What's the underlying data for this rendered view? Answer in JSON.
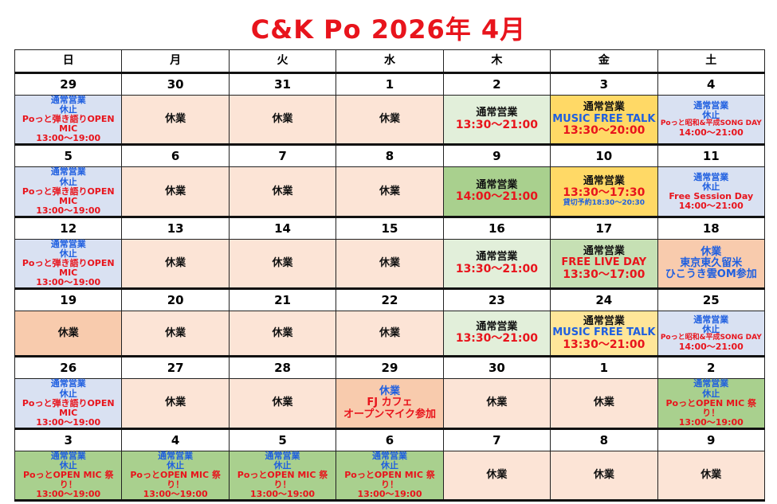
{
  "title": "C&K Po 2026年  4月",
  "colors": {
    "blue": "#d9e1f2",
    "peach": "#fce4d6",
    "ltgreen": "#e2efda",
    "green": "#a9d08e",
    "midgreen": "#c6e0b4",
    "yellow": "#ffd966",
    "ltyellow": "#ffe699",
    "orange": "#f8cbad",
    "textBlue": "#1f5fe0",
    "textRed": "#e8141c",
    "textBlack": "#111111"
  },
  "weekdays": [
    "日",
    "月",
    "火",
    "水",
    "木",
    "金",
    "土"
  ],
  "weeks": [
    {
      "cells": [
        {
          "date": "29",
          "bg": "blue",
          "lines": [
            {
              "t": "通常営業",
              "c": "textBlue",
              "s": "m"
            },
            {
              "t": "休止",
              "c": "textBlue",
              "s": "m"
            },
            {
              "t": "Poっと弾き語りOPEN MIC",
              "c": "textRed",
              "s": "m"
            },
            {
              "t": "13:00～19:00",
              "c": "textRed",
              "s": "m"
            }
          ]
        },
        {
          "date": "30",
          "bg": "peach",
          "lines": [
            {
              "t": "休業",
              "c": "textBlack",
              "s": "l"
            }
          ]
        },
        {
          "date": "31",
          "bg": "peach",
          "lines": [
            {
              "t": "休業",
              "c": "textBlack",
              "s": "l"
            }
          ]
        },
        {
          "date": "1",
          "bg": "peach",
          "lines": [
            {
              "t": "休業",
              "c": "textBlack",
              "s": "l"
            }
          ]
        },
        {
          "date": "2",
          "bg": "ltgreen",
          "lines": [
            {
              "t": "通常営業",
              "c": "textBlack",
              "s": "l"
            },
            {
              "t": "13:30～21:00",
              "c": "textRed",
              "s": "xl"
            }
          ]
        },
        {
          "date": "3",
          "bg": "yellow",
          "lines": [
            {
              "t": "通常営業",
              "c": "textBlack",
              "s": "l"
            },
            {
              "t": "MUSIC FREE TALK",
              "c": "textBlue",
              "s": "l"
            },
            {
              "t": "13:30～20:00",
              "c": "textRed",
              "s": "xl"
            }
          ]
        },
        {
          "date": "4",
          "bg": "blue",
          "lines": [
            {
              "t": "通常営業",
              "c": "textBlue",
              "s": "m"
            },
            {
              "t": "休止",
              "c": "textBlue",
              "s": "m"
            },
            {
              "t": "Poっと昭和&平成SONG DAY",
              "c": "textRed",
              "s": "s"
            },
            {
              "t": "14:00～21:00",
              "c": "textRed",
              "s": "m"
            }
          ]
        }
      ]
    },
    {
      "cells": [
        {
          "date": "5",
          "bg": "blue",
          "lines": [
            {
              "t": "通常営業",
              "c": "textBlue",
              "s": "m"
            },
            {
              "t": "休止",
              "c": "textBlue",
              "s": "m"
            },
            {
              "t": "Poっと弾き語りOPEN MIC",
              "c": "textRed",
              "s": "m"
            },
            {
              "t": "13:00～19:00",
              "c": "textRed",
              "s": "m"
            }
          ]
        },
        {
          "date": "6",
          "bg": "peach",
          "lines": [
            {
              "t": "休業",
              "c": "textBlack",
              "s": "l"
            }
          ]
        },
        {
          "date": "7",
          "bg": "peach",
          "lines": [
            {
              "t": "休業",
              "c": "textBlack",
              "s": "l"
            }
          ]
        },
        {
          "date": "8",
          "bg": "peach",
          "lines": [
            {
              "t": "休業",
              "c": "textBlack",
              "s": "l"
            }
          ]
        },
        {
          "date": "9",
          "bg": "green",
          "lines": [
            {
              "t": "通常営業",
              "c": "textBlack",
              "s": "l"
            },
            {
              "t": "14:00～21:00",
              "c": "textRed",
              "s": "xl"
            }
          ]
        },
        {
          "date": "10",
          "bg": "yellow",
          "lines": [
            {
              "t": "通常営業",
              "c": "textBlack",
              "s": "l"
            },
            {
              "t": "13:30～17:30",
              "c": "textRed",
              "s": "xl"
            },
            {
              "t": "貸切予約18:30～20:30",
              "c": "textBlue",
              "s": "s"
            }
          ]
        },
        {
          "date": "11",
          "bg": "blue",
          "lines": [
            {
              "t": "通常営業",
              "c": "textBlue",
              "s": "m"
            },
            {
              "t": "休止",
              "c": "textBlue",
              "s": "m"
            },
            {
              "t": "Free Session Day",
              "c": "textRed",
              "s": "m"
            },
            {
              "t": "14:00～21:00",
              "c": "textRed",
              "s": "m"
            }
          ]
        }
      ]
    },
    {
      "cells": [
        {
          "date": "12",
          "bg": "blue",
          "lines": [
            {
              "t": "通常営業",
              "c": "textBlue",
              "s": "m"
            },
            {
              "t": "休止",
              "c": "textBlue",
              "s": "m"
            },
            {
              "t": "Poっと弾き語りOPEN MIC",
              "c": "textRed",
              "s": "m"
            },
            {
              "t": "13:00～19:00",
              "c": "textRed",
              "s": "m"
            }
          ]
        },
        {
          "date": "13",
          "bg": "peach",
          "lines": [
            {
              "t": "休業",
              "c": "textBlack",
              "s": "l"
            }
          ]
        },
        {
          "date": "14",
          "bg": "peach",
          "lines": [
            {
              "t": "休業",
              "c": "textBlack",
              "s": "l"
            }
          ]
        },
        {
          "date": "15",
          "bg": "peach",
          "lines": [
            {
              "t": "休業",
              "c": "textBlack",
              "s": "l"
            }
          ]
        },
        {
          "date": "16",
          "bg": "ltgreen",
          "lines": [
            {
              "t": "通常営業",
              "c": "textBlack",
              "s": "l"
            },
            {
              "t": "13:30～21:00",
              "c": "textRed",
              "s": "xl"
            }
          ]
        },
        {
          "date": "17",
          "bg": "midgreen",
          "lines": [
            {
              "t": "通常営業",
              "c": "textBlack",
              "s": "l"
            },
            {
              "t": "FREE LIVE DAY",
              "c": "textRed",
              "s": "l"
            },
            {
              "t": "13:30～17:00",
              "c": "textRed",
              "s": "xl"
            }
          ]
        },
        {
          "date": "18",
          "bg": "orange",
          "lines": [
            {
              "t": "休業",
              "c": "textBlue",
              "s": "l"
            },
            {
              "t": "東京東久留米",
              "c": "textBlue",
              "s": "l"
            },
            {
              "t": "ひこうき雲OM参加",
              "c": "textBlue",
              "s": "l"
            }
          ]
        }
      ]
    },
    {
      "cells": [
        {
          "date": "19",
          "bg": "orange",
          "lines": [
            {
              "t": "休業",
              "c": "textBlack",
              "s": "l"
            }
          ]
        },
        {
          "date": "20",
          "bg": "peach",
          "lines": [
            {
              "t": "休業",
              "c": "textBlack",
              "s": "l"
            }
          ]
        },
        {
          "date": "21",
          "bg": "peach",
          "lines": [
            {
              "t": "休業",
              "c": "textBlack",
              "s": "l"
            }
          ]
        },
        {
          "date": "22",
          "bg": "peach",
          "lines": [
            {
              "t": "休業",
              "c": "textBlack",
              "s": "l"
            }
          ]
        },
        {
          "date": "23",
          "bg": "ltgreen",
          "lines": [
            {
              "t": "通常営業",
              "c": "textBlack",
              "s": "l"
            },
            {
              "t": "13:30～21:00",
              "c": "textRed",
              "s": "xl"
            }
          ]
        },
        {
          "date": "24",
          "bg": "ltyellow",
          "lines": [
            {
              "t": "通常営業",
              "c": "textBlack",
              "s": "l"
            },
            {
              "t": "MUSIC FREE TALK",
              "c": "textBlue",
              "s": "l"
            },
            {
              "t": "13:30～21:00",
              "c": "textRed",
              "s": "xl"
            }
          ]
        },
        {
          "date": "25",
          "bg": "blue",
          "lines": [
            {
              "t": "通常営業",
              "c": "textBlue",
              "s": "m"
            },
            {
              "t": "休止",
              "c": "textBlue",
              "s": "m"
            },
            {
              "t": "Poっと昭和&平成SONG DAY",
              "c": "textRed",
              "s": "s"
            },
            {
              "t": "14:00～21:00",
              "c": "textRed",
              "s": "m"
            }
          ]
        }
      ]
    },
    {
      "cells": [
        {
          "date": "26",
          "bg": "blue",
          "lines": [
            {
              "t": "通常営業",
              "c": "textBlue",
              "s": "m"
            },
            {
              "t": "休止",
              "c": "textBlue",
              "s": "m"
            },
            {
              "t": "Poっと弾き語りOPEN MIC",
              "c": "textRed",
              "s": "m"
            },
            {
              "t": "13:00～19:00",
              "c": "textRed",
              "s": "m"
            }
          ]
        },
        {
          "date": "27",
          "bg": "peach",
          "lines": [
            {
              "t": "休業",
              "c": "textBlack",
              "s": "l"
            }
          ]
        },
        {
          "date": "28",
          "bg": "peach",
          "lines": [
            {
              "t": "休業",
              "c": "textBlack",
              "s": "l"
            }
          ]
        },
        {
          "date": "29",
          "bg": "orange",
          "lines": [
            {
              "t": "休業",
              "c": "textBlue",
              "s": "l"
            },
            {
              "t": "FJ カフェ",
              "c": "textRed",
              "s": "l"
            },
            {
              "t": "オープンマイク参加",
              "c": "textRed",
              "s": "l"
            }
          ]
        },
        {
          "date": "30",
          "bg": "peach",
          "lines": [
            {
              "t": "休業",
              "c": "textBlack",
              "s": "l"
            }
          ]
        },
        {
          "date": "1",
          "bg": "peach",
          "lines": [
            {
              "t": "休業",
              "c": "textBlack",
              "s": "l"
            }
          ]
        },
        {
          "date": "2",
          "bg": "green",
          "lines": [
            {
              "t": "通常営業",
              "c": "textBlue",
              "s": "m"
            },
            {
              "t": "休止",
              "c": "textBlue",
              "s": "m"
            },
            {
              "t": "PoっとOPEN MIC 祭り！",
              "c": "textRed",
              "s": "m"
            },
            {
              "t": "13:00～19:00",
              "c": "textRed",
              "s": "m"
            }
          ]
        }
      ]
    },
    {
      "cells": [
        {
          "date": "3",
          "bg": "green",
          "lines": [
            {
              "t": "通常営業",
              "c": "textBlue",
              "s": "m"
            },
            {
              "t": "休止",
              "c": "textBlue",
              "s": "m"
            },
            {
              "t": "PoっとOPEN MIC 祭り！",
              "c": "textRed",
              "s": "m"
            },
            {
              "t": "13:00～19:00",
              "c": "textRed",
              "s": "m"
            }
          ]
        },
        {
          "date": "4",
          "bg": "green",
          "lines": [
            {
              "t": "通常営業",
              "c": "textBlue",
              "s": "m"
            },
            {
              "t": "休止",
              "c": "textBlue",
              "s": "m"
            },
            {
              "t": "PoっとOPEN MIC 祭り！",
              "c": "textRed",
              "s": "m"
            },
            {
              "t": "13:00～19:00",
              "c": "textRed",
              "s": "m"
            }
          ]
        },
        {
          "date": "5",
          "bg": "green",
          "lines": [
            {
              "t": "通常営業",
              "c": "textBlue",
              "s": "m"
            },
            {
              "t": "休止",
              "c": "textBlue",
              "s": "m"
            },
            {
              "t": "PoっとOPEN MIC 祭り！",
              "c": "textRed",
              "s": "m"
            },
            {
              "t": "13:00～19:00",
              "c": "textRed",
              "s": "m"
            }
          ]
        },
        {
          "date": "6",
          "bg": "green",
          "lines": [
            {
              "t": "通常営業",
              "c": "textBlue",
              "s": "m"
            },
            {
              "t": "休止",
              "c": "textBlue",
              "s": "m"
            },
            {
              "t": "PoっとOPEN MIC 祭り！",
              "c": "textRed",
              "s": "m"
            },
            {
              "t": "13:00～19:00",
              "c": "textRed",
              "s": "m"
            }
          ]
        },
        {
          "date": "7",
          "bg": "peach",
          "lines": [
            {
              "t": "休業",
              "c": "textBlack",
              "s": "l"
            }
          ]
        },
        {
          "date": "8",
          "bg": "peach",
          "lines": [
            {
              "t": "休業",
              "c": "textBlack",
              "s": "l"
            }
          ]
        },
        {
          "date": "9",
          "bg": "peach",
          "lines": [
            {
              "t": "休業",
              "c": "textBlack",
              "s": "l"
            }
          ]
        }
      ]
    }
  ]
}
